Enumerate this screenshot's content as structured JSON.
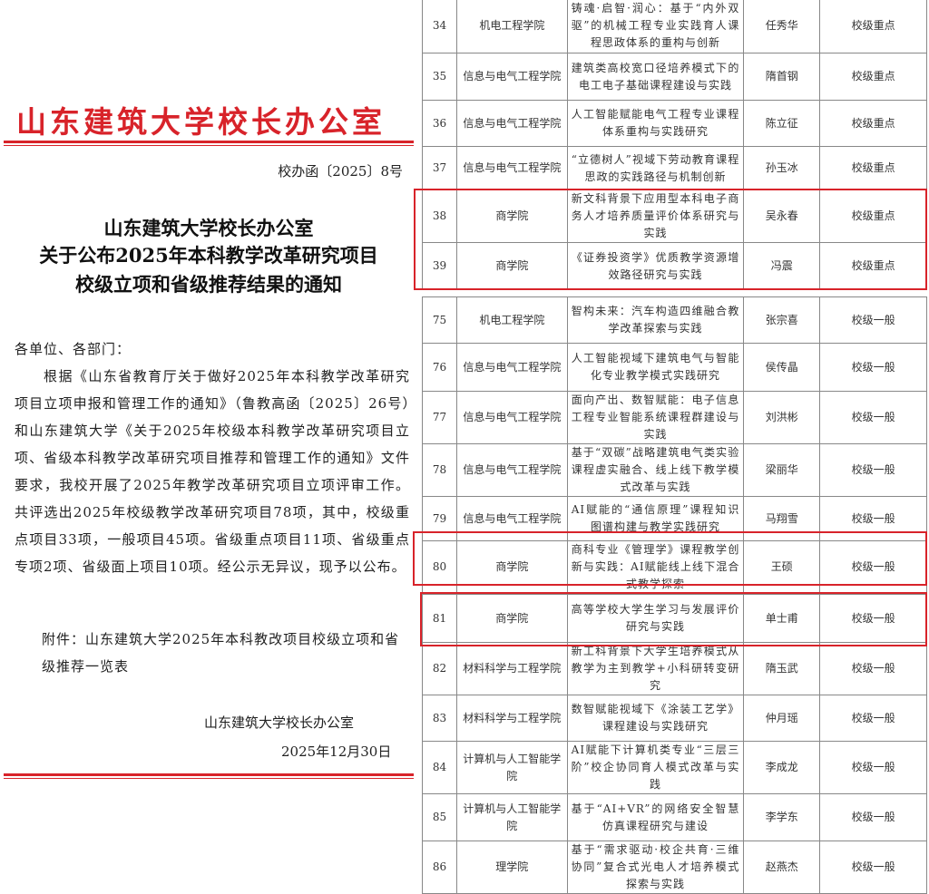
{
  "letter": {
    "office_header": "山东建筑大学校长办公室",
    "doc_number": "校办函〔2025〕8号",
    "title_lines": [
      "山东建筑大学校长办公室",
      "关于公布2025年本科教学改革研究项目",
      "校级立项和省级推荐结果的通知"
    ],
    "salutation": "各单位、各部门：",
    "body": "根据《山东省教育厅关于做好2025年本科教学改革研究项目立项申报和管理工作的通知》（鲁教高函〔2025〕26号）和山东建筑大学《关于2025年校级本科教学改革研究项目立项、省级本科教学改革研究项目推荐和管理工作的通知》文件要求，我校开展了2025年教学改革研究项目立项评审工作。共评选出2025年校级教学改革研究项目78项，其中，校级重点项目33项，一般项目45项。省级重点项目11项、省级重点专项2项、省级面上项目10项。经公示无异议，现予以公布。",
    "attachment": "附件：山东建筑大学2025年本科教改项目校级立项和省级推荐一览表",
    "signature": "山东建筑大学校长办公室",
    "date": "2025年12月30日",
    "accent_color": "#d8232a"
  },
  "tables": [
    {
      "rows": [
        [
          "34",
          "机电工程学院",
          "铸魂·启智·润心：基于“内外双驱”的机械工程专业实践育人课程思政体系的重构与创新",
          "任秀华",
          "校级重点"
        ],
        [
          "35",
          "信息与电气工程学院",
          "建筑类高校宽口径培养模式下的电工电子基础课程建设与实践",
          "隋首钢",
          "校级重点"
        ],
        [
          "36",
          "信息与电气工程学院",
          "人工智能赋能电气工程专业课程体系重构与实践研究",
          "陈立征",
          "校级重点"
        ],
        [
          "37",
          "信息与电气工程学院",
          "“立德树人”视域下劳动教育课程思政的实践路径与机制创新",
          "孙玉冰",
          "校级重点"
        ],
        [
          "38",
          "商学院",
          "新文科背景下应用型本科电子商务人才培养质量评价体系研究与实践",
          "吴永春",
          "校级重点"
        ],
        [
          "39",
          "商学院",
          "《证券投资学》优质教学资源增效路径研究与实践",
          "冯震",
          "校级重点"
        ]
      ]
    },
    {
      "rows": [
        [
          "75",
          "机电工程学院",
          "智构未来：汽车构造四维融合教学改革探索与实践",
          "张宗喜",
          "校级一般"
        ],
        [
          "76",
          "信息与电气工程学院",
          "人工智能视域下建筑电气与智能化专业教学模式实践研究",
          "侯传晶",
          "校级一般"
        ],
        [
          "77",
          "信息与电气工程学院",
          "面向产出、数智赋能：电子信息工程专业智能系统课程群建设与实践",
          "刘洪彬",
          "校级一般"
        ],
        [
          "78",
          "信息与电气工程学院",
          "基于“双碳”战略建筑电气类实验课程虚实融合、线上线下教学模式改革与实践",
          "梁丽华",
          "校级一般"
        ],
        [
          "79",
          "信息与电气工程学院",
          "AI赋能的“通信原理”课程知识图谱构建与教学实践研究",
          "马翔雪",
          "校级一般"
        ],
        [
          "80",
          "商学院",
          "商科专业《管理学》课程教学创新与实践：AI赋能线上线下混合式教学探索",
          "王硕",
          "校级一般"
        ]
      ]
    },
    {
      "rows": [
        [
          "81",
          "商学院",
          "高等学校大学生学习与发展评价研究与实践",
          "单士甫",
          "校级一般"
        ],
        [
          "82",
          "材料科学与工程学院",
          "新工科背景下大学生培养模式从教学为主到教学+小科研转变研究",
          "隋玉武",
          "校级一般"
        ],
        [
          "83",
          "材料科学与工程学院",
          "数智赋能视域下《涂装工艺学》课程建设与实践研究",
          "仲月瑶",
          "校级一般"
        ],
        [
          "84",
          "计算机与人工智能学院",
          "AI赋能下计算机类专业“三层三阶”校企协同育人模式改革与实践",
          "李成龙",
          "校级一般"
        ],
        [
          "85",
          "计算机与人工智能学院",
          "基于“AI+VR”的网络安全智慧仿真课程研究与建设",
          "李学东",
          "校级一般"
        ],
        [
          "86",
          "理学院",
          "基于“需求驱动·校企共育·三维协同”复合式光电人才培养模式探索与实践",
          "赵燕杰",
          "校级一般"
        ]
      ]
    }
  ]
}
